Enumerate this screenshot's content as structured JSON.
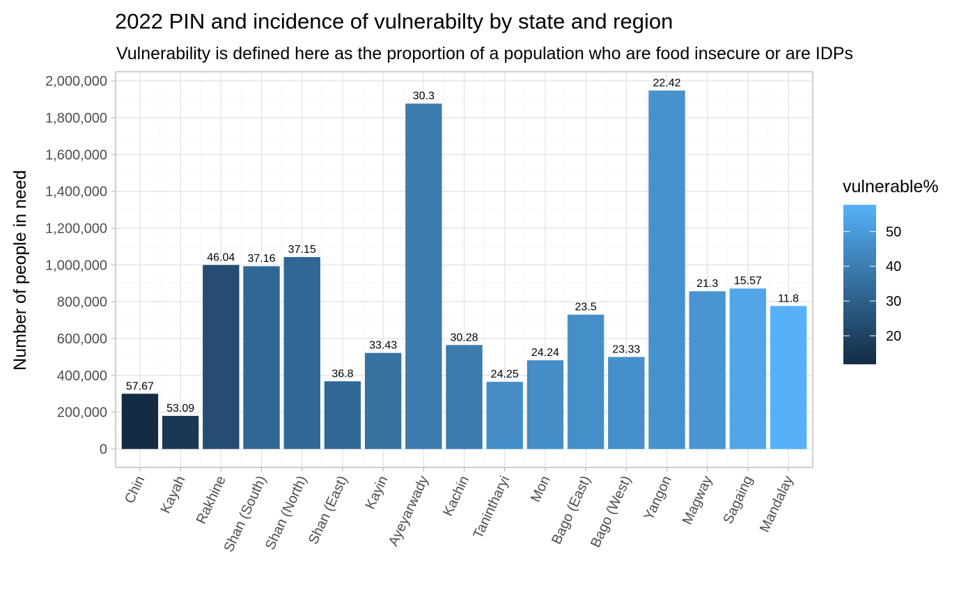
{
  "chart_data": {
    "type": "bar",
    "title": "2022 PIN and incidence of vulnerabilty by state and region",
    "subtitle": "Vulnerability is defined here as the proportion of a population who are food insecure or are IDPs",
    "xlabel": "",
    "ylabel": "Number of people in need",
    "ylim": [
      -100000,
      2050000
    ],
    "y_ticks": [
      0,
      200000,
      400000,
      600000,
      800000,
      1000000,
      1200000,
      1400000,
      1600000,
      1800000,
      2000000
    ],
    "y_tick_labels": [
      "0",
      "200,000",
      "400,000",
      "600,000",
      "800,000",
      "1,000,000",
      "1,200,000",
      "1,400,000",
      "1,600,000",
      "1,800,000",
      "2,000,000"
    ],
    "grid": true,
    "legend": {
      "title": "vulnerable%",
      "position": "right",
      "ticks": [
        20,
        30,
        40,
        50
      ],
      "tick_labels": [
        "20",
        "30",
        "40",
        "50"
      ],
      "range": [
        11.8,
        57.67
      ],
      "color_low": "#56b1f7",
      "color_high": "#132b43"
    },
    "categories": [
      "Chin",
      "Kayah",
      "Rakhine",
      "Shan (South)",
      "Shan (North)",
      "Shan (East)",
      "Kayin",
      "Ayeyarwady",
      "Kachin",
      "Tanintharyi",
      "Mon",
      "Bago (East)",
      "Bago (West)",
      "Yangon",
      "Magway",
      "Sagaing",
      "Mandalay"
    ],
    "series": [
      {
        "values": [
          300000,
          180000,
          1000000,
          993000,
          1043000,
          368000,
          522000,
          1877000,
          565000,
          365000,
          482000,
          730000,
          500000,
          1948000,
          857000,
          872000,
          777000
        ],
        "labels": [
          "57.67",
          "53.09",
          "46.04",
          "37.16",
          "37.15",
          "36.8",
          "33.43",
          "30.3",
          "30.28",
          "24.25",
          "24.24",
          "23.5",
          "23.33",
          "22.42",
          "21.3",
          "15.57",
          "11.8"
        ],
        "color_values": [
          57.67,
          53.09,
          46.04,
          37.16,
          37.15,
          36.8,
          33.43,
          30.3,
          30.28,
          24.25,
          24.24,
          23.5,
          23.33,
          22.42,
          21.3,
          15.57,
          11.8
        ]
      }
    ]
  }
}
